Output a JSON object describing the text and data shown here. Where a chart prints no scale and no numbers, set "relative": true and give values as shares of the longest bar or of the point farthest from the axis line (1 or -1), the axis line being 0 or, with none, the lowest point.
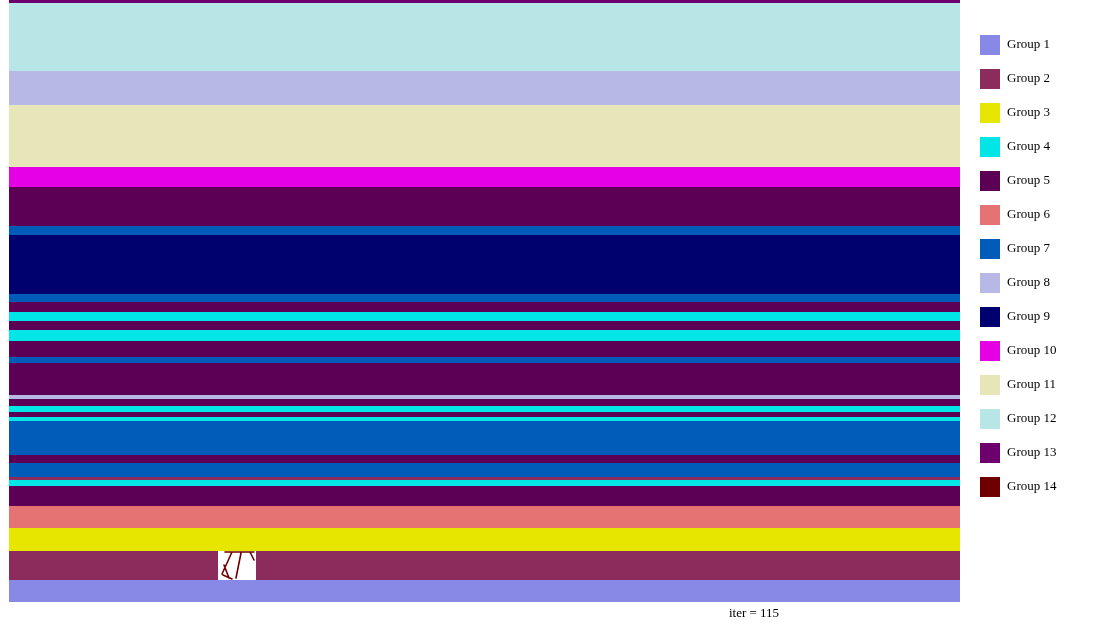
{
  "chart_data": {
    "type": "bar",
    "relative": true,
    "stacked": true,
    "categories": [
      null
    ],
    "legend": "right",
    "annotations": [
      "iter = 115"
    ],
    "series": [
      {
        "name": "Group 1",
        "color": "#8888e6",
        "values": [
          0.037
        ]
      },
      {
        "name": "Group 2",
        "color": "#8b2c5c",
        "values": [
          0.048
        ]
      },
      {
        "name": "Group 3",
        "color": "#e6e600",
        "values": [
          0.038
        ]
      },
      {
        "name": "Group 6",
        "color": "#e67373",
        "values": [
          0.037
        ]
      },
      {
        "color": "#5c0055",
        "values": [
          0.033
        ]
      },
      {
        "color": "#00e6e6",
        "values": [
          0.01
        ]
      },
      {
        "color": "#8b2c5c",
        "values": [
          0.005
        ]
      },
      {
        "color": "#005cb8",
        "values": [
          0.023
        ]
      },
      {
        "color": "#5c0055",
        "values": [
          0.013
        ]
      },
      {
        "name": "Group 7",
        "color": "#005cb8",
        "values": [
          0.056
        ]
      },
      {
        "color": "#00e6e6",
        "values": [
          0.008
        ]
      },
      {
        "color": "#5c0055",
        "values": [
          0.007
        ]
      },
      {
        "color": "#00e6e6",
        "values": [
          0.01
        ]
      },
      {
        "color": "#5c0055",
        "values": [
          0.012
        ]
      },
      {
        "color": "#b8b8e6",
        "values": [
          0.007
        ]
      },
      {
        "color": "#5c0055",
        "values": [
          0.053
        ]
      },
      {
        "color": "#005cb8",
        "values": [
          0.01
        ]
      },
      {
        "color": "#5c0055",
        "values": [
          0.027
        ]
      },
      {
        "name": "Group 4",
        "color": "#00e6e6",
        "values": [
          0.017
        ]
      },
      {
        "color": "#5c0055",
        "values": [
          0.015
        ]
      },
      {
        "color": "#00e6e6",
        "values": [
          0.015
        ]
      },
      {
        "color": "#5c0055",
        "values": [
          0.018
        ]
      },
      {
        "color": "#005cb8",
        "values": [
          0.013
        ]
      },
      {
        "name": "Group 9",
        "color": "#00006e",
        "values": [
          0.098
        ]
      },
      {
        "color": "#005cb8",
        "values": [
          0.015
        ]
      },
      {
        "name": "Group 5",
        "color": "#5c0055",
        "values": [
          0.065
        ]
      },
      {
        "name": "Group 10",
        "color": "#e600e6",
        "values": [
          0.033
        ]
      },
      {
        "name": "Group 11",
        "color": "#e6e6b8",
        "values": [
          0.103
        ]
      },
      {
        "name": "Group 8",
        "color": "#b8b8e6",
        "values": [
          0.056
        ]
      },
      {
        "name": "Group 12",
        "color": "#b8e6e6",
        "values": [
          0.113
        ]
      },
      {
        "name": "Group 13",
        "color": "#6e006e",
        "values": [
          0.005
        ]
      },
      {
        "name": "Group 14",
        "color": "#6e0000",
        "values": [
          null
        ]
      }
    ]
  }
}
